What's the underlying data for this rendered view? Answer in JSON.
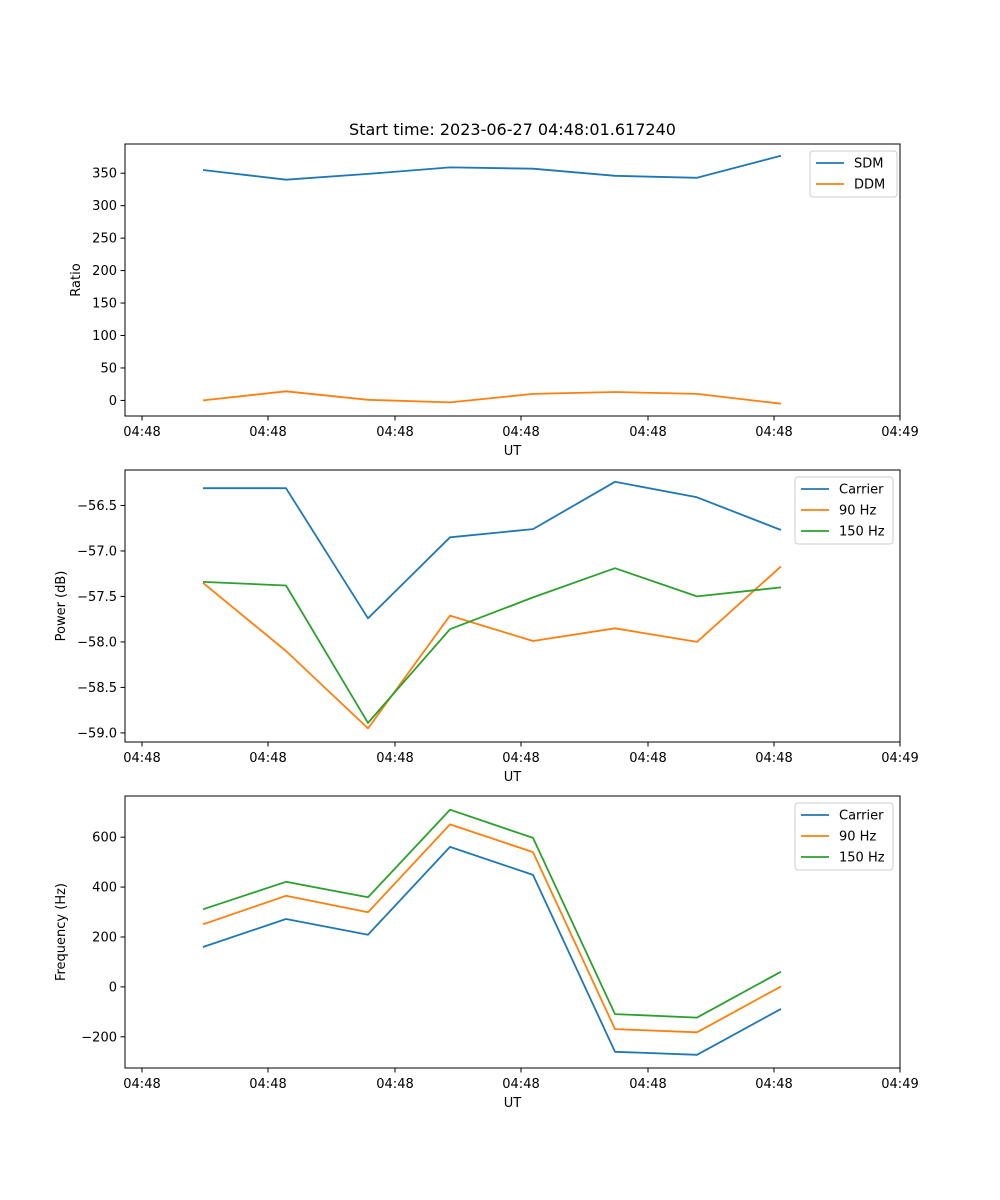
{
  "chart_data": [
    {
      "type": "line",
      "title": "Start time: 2023-06-27 04:48:01.617240",
      "xlabel": "UT",
      "ylabel": "Ratio",
      "x_tick_labels": [
        "04:48",
        "04:48",
        "04:48",
        "04:48",
        "04:48",
        "04:48",
        "04:49"
      ],
      "y_ticks": [
        0,
        50,
        100,
        150,
        200,
        250,
        300,
        350
      ],
      "ylim": [
        -24,
        395
      ],
      "legend_position": "top-right",
      "series": [
        {
          "name": "SDM",
          "color": "#1f77b4",
          "values": [
            355,
            340,
            349,
            359,
            357,
            346,
            343,
            377
          ]
        },
        {
          "name": "DDM",
          "color": "#ff7f0e",
          "values": [
            0,
            14,
            1,
            -3,
            10,
            13,
            10,
            -5
          ]
        }
      ]
    },
    {
      "type": "line",
      "title": "",
      "xlabel": "UT",
      "ylabel": "Power (dB)",
      "x_tick_labels": [
        "04:48",
        "04:48",
        "04:48",
        "04:48",
        "04:48",
        "04:48",
        "04:49"
      ],
      "y_ticks": [
        -59.0,
        -58.5,
        -58.0,
        -57.5,
        -57.0,
        -56.5
      ],
      "y_tick_labels": [
        "−59.0",
        "−58.5",
        "−58.0",
        "−57.5",
        "−57.0",
        "−56.5"
      ],
      "ylim": [
        -59.1,
        -56.11
      ],
      "legend_position": "top-right",
      "series": [
        {
          "name": "Carrier",
          "color": "#1f77b4",
          "values": [
            -56.31,
            -56.31,
            -57.74,
            -56.85,
            -56.76,
            -56.24,
            -56.41,
            -56.77
          ]
        },
        {
          "name": "90 Hz",
          "color": "#ff7f0e",
          "values": [
            -57.35,
            -58.1,
            -58.95,
            -57.71,
            -57.99,
            -57.85,
            -58.0,
            -57.17
          ]
        },
        {
          "name": "150 Hz",
          "color": "#2ca02c",
          "values": [
            -57.34,
            -57.38,
            -58.89,
            -57.86,
            -57.51,
            -57.19,
            -57.5,
            -57.4
          ]
        }
      ]
    },
    {
      "type": "line",
      "title": "",
      "xlabel": "UT",
      "ylabel": "Frequency (Hz)",
      "x_tick_labels": [
        "04:48",
        "04:48",
        "04:48",
        "04:48",
        "04:48",
        "04:48",
        "04:49"
      ],
      "y_ticks": [
        -200,
        0,
        200,
        400,
        600
      ],
      "y_tick_labels": [
        "−200",
        "0",
        "200",
        "400",
        "600"
      ],
      "ylim": [
        -325,
        765
      ],
      "legend_position": "top-right",
      "series": [
        {
          "name": "Carrier",
          "color": "#1f77b4",
          "values": [
            160,
            272,
            209,
            561,
            449,
            -260,
            -272,
            -88
          ]
        },
        {
          "name": "90 Hz",
          "color": "#ff7f0e",
          "values": [
            251,
            365,
            299,
            651,
            540,
            -169,
            -182,
            2
          ]
        },
        {
          "name": "150 Hz",
          "color": "#2ca02c",
          "values": [
            311,
            421,
            359,
            710,
            597,
            -109,
            -123,
            61
          ]
        }
      ]
    }
  ]
}
